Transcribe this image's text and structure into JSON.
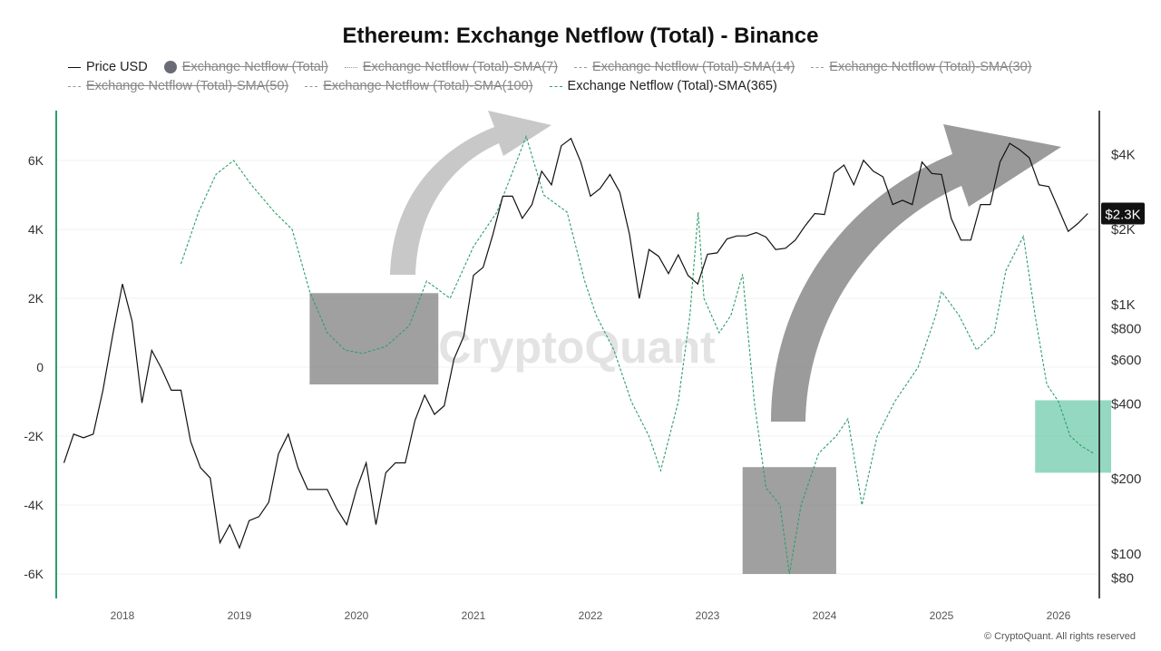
{
  "chart_data": {
    "type": "line",
    "title": "Ethereum: Exchange Netflow (Total) - Binance",
    "legend": [
      {
        "name": "Price USD",
        "visible": true,
        "color": "#111111",
        "style": "solid"
      },
      {
        "name": "Exchange Netflow (Total)",
        "visible": false,
        "color": "#6b6b78",
        "style": "dot-marker"
      },
      {
        "name": "Exchange Netflow (Total)-SMA(7)",
        "visible": false,
        "color": "#999999",
        "style": "dotted"
      },
      {
        "name": "Exchange Netflow (Total)-SMA(14)",
        "visible": false,
        "color": "#999999",
        "style": "dashed"
      },
      {
        "name": "Exchange Netflow (Total)-SMA(30)",
        "visible": false,
        "color": "#999999",
        "style": "dashed"
      },
      {
        "name": "Exchange Netflow (Total)-SMA(50)",
        "visible": false,
        "color": "#999999",
        "style": "dashed"
      },
      {
        "name": "Exchange Netflow (Total)-SMA(100)",
        "visible": false,
        "color": "#999999",
        "style": "dashed"
      },
      {
        "name": "Exchange Netflow (Total)-SMA(365)",
        "visible": true,
        "color": "#2e9e6a",
        "style": "dashed"
      }
    ],
    "x_ticks": [
      "2018",
      "2019",
      "2020",
      "2021",
      "2022",
      "2023",
      "2024",
      "2025",
      "2026"
    ],
    "y_left_ticks": [
      {
        "v": 6,
        "label": "6K"
      },
      {
        "v": 4,
        "label": "4K"
      },
      {
        "v": 2,
        "label": "2K"
      },
      {
        "v": 0,
        "label": "0"
      },
      {
        "v": -2,
        "label": "-2K"
      },
      {
        "v": -4,
        "label": "-4K"
      },
      {
        "v": -6,
        "label": "-6K"
      }
    ],
    "y_right_ticks": [
      {
        "v": 4000,
        "label": "$4K"
      },
      {
        "v": 2000,
        "label": "$2K"
      },
      {
        "v": 1000,
        "label": "$1K"
      },
      {
        "v": 800,
        "label": "$800"
      },
      {
        "v": 600,
        "label": "$600"
      },
      {
        "v": 400,
        "label": "$400"
      },
      {
        "v": 200,
        "label": "$200"
      },
      {
        "v": 100,
        "label": "$100"
      },
      {
        "v": 80,
        "label": "$80"
      }
    ],
    "y_right_scale": "log",
    "current_price_label": "$2.3K",
    "price_start": 2017.5,
    "price_monthly": [
      230,
      300,
      290,
      300,
      450,
      750,
      1200,
      850,
      400,
      650,
      550,
      450,
      450,
      280,
      220,
      200,
      110,
      130,
      105,
      135,
      140,
      160,
      250,
      300,
      220,
      180,
      180,
      180,
      150,
      130,
      180,
      230,
      130,
      210,
      230,
      230,
      340,
      430,
      360,
      390,
      600,
      740,
      1300,
      1400,
      1900,
      2700,
      2700,
      2200,
      2500,
      3400,
      3000,
      4300,
      4600,
      3700,
      2700,
      2900,
      3300,
      2800,
      1900,
      1050,
      1650,
      1550,
      1320,
      1570,
      1300,
      1200,
      1580,
      1600,
      1820,
      1870,
      1870,
      1930,
      1850,
      1650,
      1670,
      1800,
      2050,
      2300,
      2280,
      3350,
      3600,
      3000,
      3760,
      3400,
      3230,
      2500,
      2600,
      2500,
      3700,
      3330,
      3300,
      2200,
      1800,
      1800,
      2500,
      2500,
      3700,
      4400,
      4150,
      3850,
      3000,
      2950,
      2400,
      1950,
      2100,
      2300
    ],
    "sma365_k": [
      [
        2018.5,
        3.0
      ],
      [
        2018.65,
        4.5
      ],
      [
        2018.8,
        5.6
      ],
      [
        2018.95,
        6.0
      ],
      [
        2019.1,
        5.3
      ],
      [
        2019.3,
        4.5
      ],
      [
        2019.45,
        4.0
      ],
      [
        2019.6,
        2.2
      ],
      [
        2019.75,
        1.0
      ],
      [
        2019.9,
        0.5
      ],
      [
        2020.05,
        0.4
      ],
      [
        2020.25,
        0.6
      ],
      [
        2020.45,
        1.2
      ],
      [
        2020.6,
        2.5
      ],
      [
        2020.8,
        2.0
      ],
      [
        2021.0,
        3.5
      ],
      [
        2021.2,
        4.5
      ],
      [
        2021.35,
        5.8
      ],
      [
        2021.45,
        6.7
      ],
      [
        2021.6,
        5.0
      ],
      [
        2021.8,
        4.5
      ],
      [
        2021.95,
        2.5
      ],
      [
        2022.05,
        1.5
      ],
      [
        2022.2,
        0.5
      ],
      [
        2022.35,
        -1.0
      ],
      [
        2022.5,
        -2.0
      ],
      [
        2022.6,
        -3.0
      ],
      [
        2022.75,
        -1.0
      ],
      [
        2022.85,
        1.5
      ],
      [
        2022.92,
        4.5
      ],
      [
        2022.97,
        2.0
      ],
      [
        2023.1,
        1.0
      ],
      [
        2023.2,
        1.5
      ],
      [
        2023.3,
        2.7
      ],
      [
        2023.4,
        -1.0
      ],
      [
        2023.5,
        -3.5
      ],
      [
        2023.62,
        -4.0
      ],
      [
        2023.7,
        -6.0
      ],
      [
        2023.8,
        -4.0
      ],
      [
        2023.95,
        -2.5
      ],
      [
        2024.1,
        -2.0
      ],
      [
        2024.2,
        -1.5
      ],
      [
        2024.32,
        -4.0
      ],
      [
        2024.45,
        -2.0
      ],
      [
        2024.6,
        -1.0
      ],
      [
        2024.8,
        0.0
      ],
      [
        2024.95,
        1.5
      ],
      [
        2025.0,
        2.2
      ],
      [
        2025.15,
        1.5
      ],
      [
        2025.3,
        0.5
      ],
      [
        2025.45,
        1.0
      ],
      [
        2025.55,
        2.8
      ],
      [
        2025.7,
        3.8
      ],
      [
        2025.8,
        1.5
      ],
      [
        2025.9,
        -0.5
      ],
      [
        2026.0,
        -1.0
      ],
      [
        2026.1,
        -2.0
      ],
      [
        2026.2,
        -2.3
      ],
      [
        2026.3,
        -2.5
      ]
    ],
    "highlight_boxes": [
      {
        "x": [
          2019.6,
          2020.7
        ],
        "y_k": [
          -0.5,
          2.15
        ],
        "color": "#808080"
      },
      {
        "x": [
          2023.3,
          2024.1
        ],
        "y_k": [
          -6.0,
          -2.9
        ],
        "color": "#808080"
      },
      {
        "x": [
          2025.8,
          2026.45
        ],
        "y_usd": [
          210,
          410
        ],
        "color": "#5cc3a0"
      }
    ]
  },
  "watermark": "CryptoQuant",
  "footer": "© CryptoQuant. All rights reserved"
}
